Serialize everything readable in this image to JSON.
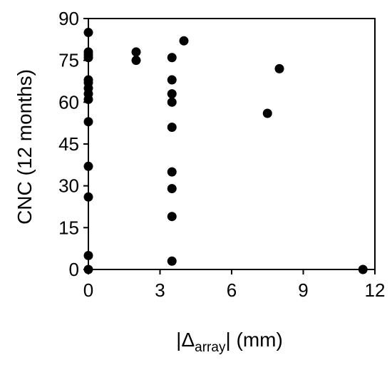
{
  "chart_data": {
    "type": "scatter",
    "xlabel_parts": {
      "pre": "|Δ",
      "sub": "array",
      "post": "| (mm)"
    },
    "ylabel": "CNC (12 months)",
    "xlim": [
      0,
      12
    ],
    "ylim": [
      0,
      90
    ],
    "xticks": [
      0,
      3,
      6,
      9,
      12
    ],
    "yticks": [
      0,
      15,
      30,
      45,
      60,
      75,
      90
    ],
    "grid": false,
    "marker_color": "#000000",
    "points": [
      {
        "x": 0,
        "y": 85
      },
      {
        "x": 0,
        "y": 78
      },
      {
        "x": 0,
        "y": 77
      },
      {
        "x": 0,
        "y": 76
      },
      {
        "x": 0,
        "y": 68
      },
      {
        "x": 0,
        "y": 67
      },
      {
        "x": 0,
        "y": 65
      },
      {
        "x": 0,
        "y": 63
      },
      {
        "x": 0,
        "y": 61
      },
      {
        "x": 0,
        "y": 53
      },
      {
        "x": 0,
        "y": 37
      },
      {
        "x": 0,
        "y": 26
      },
      {
        "x": 0,
        "y": 5
      },
      {
        "x": 0,
        "y": 0
      },
      {
        "x": 2,
        "y": 78
      },
      {
        "x": 2,
        "y": 75
      },
      {
        "x": 3.5,
        "y": 76
      },
      {
        "x": 3.5,
        "y": 68
      },
      {
        "x": 3.5,
        "y": 63
      },
      {
        "x": 3.5,
        "y": 60
      },
      {
        "x": 3.5,
        "y": 51
      },
      {
        "x": 3.5,
        "y": 35
      },
      {
        "x": 3.5,
        "y": 29
      },
      {
        "x": 3.5,
        "y": 19
      },
      {
        "x": 3.5,
        "y": 3
      },
      {
        "x": 4,
        "y": 82
      },
      {
        "x": 7.5,
        "y": 56
      },
      {
        "x": 8,
        "y": 72
      },
      {
        "x": 11.5,
        "y": 0
      }
    ]
  }
}
